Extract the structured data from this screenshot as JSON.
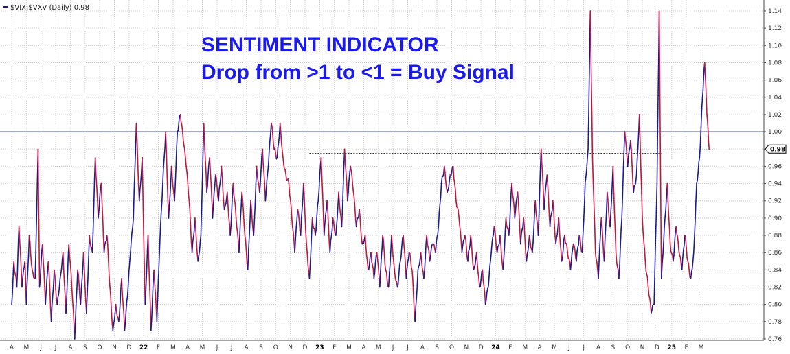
{
  "chart_data": {
    "type": "line",
    "legend": "$VIX:$VXV (Daily) 0.98",
    "annotations": [
      "SENTIMENT INDICATOR",
      "Drop from >1 to <1 = Buy Signal"
    ],
    "last_value": "0.98",
    "ylim": [
      0.76,
      1.15
    ],
    "yticks": [
      "0.76",
      "0.78",
      "0.80",
      "0.82",
      "0.84",
      "0.86",
      "0.88",
      "0.90",
      "0.92",
      "0.94",
      "0.96",
      "0.98",
      "1.00",
      "1.02",
      "1.04",
      "1.06",
      "1.08",
      "1.10",
      "1.12",
      "1.14"
    ],
    "x_months": [
      "A",
      "M",
      "J",
      "J",
      "A",
      "S",
      "O",
      "N",
      "D",
      "22",
      "F",
      "M",
      "A",
      "M",
      "J",
      "J",
      "A",
      "S",
      "O",
      "N",
      "D",
      "23",
      "F",
      "M",
      "A",
      "M",
      "J",
      "J",
      "A",
      "S",
      "O",
      "N",
      "D",
      "24",
      "F",
      "M",
      "A",
      "M",
      "J",
      "J",
      "A",
      "S",
      "O",
      "N",
      "D",
      "25",
      "F",
      "M"
    ],
    "reference_lines": [
      {
        "value": 1.0,
        "style": "solid",
        "color": "#1a237e"
      },
      {
        "value": 0.975,
        "style": "dotted",
        "color": "#1a237e",
        "x_start": 20.3,
        "x_end": 44.3
      }
    ],
    "colors": {
      "line_rising": "#1a1a99",
      "line_falling": "#c8143c",
      "grid": "#d0d0d0"
    },
    "anchors": [
      [
        0,
        0.8
      ],
      [
        0.15,
        0.85
      ],
      [
        0.35,
        0.82
      ],
      [
        0.5,
        0.89
      ],
      [
        0.7,
        0.82
      ],
      [
        0.9,
        0.85
      ],
      [
        1.0,
        0.8
      ],
      [
        1.2,
        0.88
      ],
      [
        1.4,
        0.84
      ],
      [
        1.6,
        0.83
      ],
      [
        1.8,
        0.98
      ],
      [
        1.9,
        0.82
      ],
      [
        2.1,
        0.87
      ],
      [
        2.3,
        0.8
      ],
      [
        2.5,
        0.85
      ],
      [
        2.7,
        0.78
      ],
      [
        2.9,
        0.84
      ],
      [
        3.1,
        0.8
      ],
      [
        3.3,
        0.83
      ],
      [
        3.5,
        0.86
      ],
      [
        3.7,
        0.79
      ],
      [
        3.9,
        0.87
      ],
      [
        4.1,
        0.82
      ],
      [
        4.3,
        0.76
      ],
      [
        4.5,
        0.84
      ],
      [
        4.7,
        0.8
      ],
      [
        4.9,
        0.86
      ],
      [
        5.1,
        0.79
      ],
      [
        5.3,
        0.88
      ],
      [
        5.5,
        0.86
      ],
      [
        5.7,
        0.97
      ],
      [
        5.9,
        0.9
      ],
      [
        6.1,
        0.94
      ],
      [
        6.3,
        0.86
      ],
      [
        6.5,
        0.88
      ],
      [
        6.7,
        0.82
      ],
      [
        6.9,
        0.77
      ],
      [
        7.1,
        0.8
      ],
      [
        7.3,
        0.78
      ],
      [
        7.5,
        0.83
      ],
      [
        7.7,
        0.77
      ],
      [
        7.9,
        0.81
      ],
      [
        8.1,
        0.86
      ],
      [
        8.3,
        0.9
      ],
      [
        8.5,
        1.01
      ],
      [
        8.7,
        0.92
      ],
      [
        8.9,
        0.97
      ],
      [
        9.1,
        0.8
      ],
      [
        9.3,
        0.88
      ],
      [
        9.5,
        0.77
      ],
      [
        9.7,
        0.84
      ],
      [
        9.9,
        0.78
      ],
      [
        10.1,
        0.87
      ],
      [
        10.3,
        0.94
      ],
      [
        10.5,
        1.0
      ],
      [
        10.7,
        0.9
      ],
      [
        10.9,
        0.96
      ],
      [
        11.1,
        0.92
      ],
      [
        11.3,
        1.0
      ],
      [
        11.5,
        1.02
      ],
      [
        11.7,
        0.99
      ],
      [
        11.9,
        0.96
      ],
      [
        12.1,
        0.92
      ],
      [
        12.3,
        0.86
      ],
      [
        12.5,
        0.9
      ],
      [
        12.7,
        0.85
      ],
      [
        12.9,
        0.88
      ],
      [
        13.1,
        1.01
      ],
      [
        13.3,
        0.93
      ],
      [
        13.5,
        0.97
      ],
      [
        13.7,
        0.9
      ],
      [
        13.9,
        0.95
      ],
      [
        14.1,
        0.92
      ],
      [
        14.3,
        0.96
      ],
      [
        14.5,
        0.91
      ],
      [
        14.7,
        0.93
      ],
      [
        14.9,
        0.88
      ],
      [
        15.1,
        0.94
      ],
      [
        15.3,
        0.9
      ],
      [
        15.5,
        0.86
      ],
      [
        15.7,
        0.93
      ],
      [
        15.9,
        0.88
      ],
      [
        16.1,
        0.84
      ],
      [
        16.3,
        0.92
      ],
      [
        16.5,
        0.88
      ],
      [
        16.7,
        0.96
      ],
      [
        16.9,
        0.93
      ],
      [
        17.1,
        0.98
      ],
      [
        17.3,
        0.92
      ],
      [
        17.5,
        0.96
      ],
      [
        17.7,
        1.01
      ],
      [
        17.9,
        0.98
      ],
      [
        18.1,
        0.97
      ],
      [
        18.3,
        1.01
      ],
      [
        18.5,
        0.97
      ],
      [
        18.7,
        0.95
      ],
      [
        18.9,
        0.94
      ],
      [
        19.1,
        0.9
      ],
      [
        19.3,
        0.86
      ],
      [
        19.5,
        0.91
      ],
      [
        19.7,
        0.88
      ],
      [
        19.9,
        0.94
      ],
      [
        20.1,
        0.87
      ],
      [
        20.3,
        0.83
      ],
      [
        20.5,
        0.9
      ],
      [
        20.7,
        0.88
      ],
      [
        20.9,
        0.92
      ],
      [
        21.1,
        0.97
      ],
      [
        21.3,
        0.88
      ],
      [
        21.5,
        0.92
      ],
      [
        21.7,
        0.86
      ],
      [
        21.9,
        0.9
      ],
      [
        22.1,
        0.88
      ],
      [
        22.3,
        0.93
      ],
      [
        22.5,
        0.89
      ],
      [
        22.7,
        0.98
      ],
      [
        22.9,
        0.92
      ],
      [
        23.1,
        0.96
      ],
      [
        23.3,
        0.93
      ],
      [
        23.5,
        0.89
      ],
      [
        23.7,
        0.91
      ],
      [
        23.9,
        0.87
      ],
      [
        24.1,
        0.88
      ],
      [
        24.3,
        0.84
      ],
      [
        24.5,
        0.86
      ],
      [
        24.7,
        0.83
      ],
      [
        24.9,
        0.86
      ],
      [
        25.1,
        0.82
      ],
      [
        25.3,
        0.88
      ],
      [
        25.5,
        0.84
      ],
      [
        25.7,
        0.82
      ],
      [
        25.9,
        0.88
      ],
      [
        26.1,
        0.84
      ],
      [
        26.3,
        0.82
      ],
      [
        26.5,
        0.85
      ],
      [
        26.7,
        0.88
      ],
      [
        26.9,
        0.83
      ],
      [
        27.1,
        0.86
      ],
      [
        27.3,
        0.84
      ],
      [
        27.5,
        0.78
      ],
      [
        27.7,
        0.84
      ],
      [
        27.9,
        0.86
      ],
      [
        28.1,
        0.83
      ],
      [
        28.3,
        0.88
      ],
      [
        28.5,
        0.85
      ],
      [
        28.7,
        0.87
      ],
      [
        28.9,
        0.86
      ],
      [
        29.1,
        0.89
      ],
      [
        29.3,
        0.94
      ],
      [
        29.5,
        0.96
      ],
      [
        29.7,
        0.93
      ],
      [
        29.9,
        0.95
      ],
      [
        30.1,
        0.96
      ],
      [
        30.3,
        0.92
      ],
      [
        30.5,
        0.9
      ],
      [
        30.7,
        0.86
      ],
      [
        30.9,
        0.88
      ],
      [
        31.1,
        0.85
      ],
      [
        31.3,
        0.88
      ],
      [
        31.5,
        0.84
      ],
      [
        31.7,
        0.86
      ],
      [
        31.9,
        0.82
      ],
      [
        32.1,
        0.84
      ],
      [
        32.3,
        0.8
      ],
      [
        32.5,
        0.82
      ],
      [
        32.7,
        0.86
      ],
      [
        32.9,
        0.89
      ],
      [
        33.1,
        0.86
      ],
      [
        33.3,
        0.88
      ],
      [
        33.5,
        0.84
      ],
      [
        33.7,
        0.9
      ],
      [
        33.9,
        0.88
      ],
      [
        34.1,
        0.94
      ],
      [
        34.3,
        0.9
      ],
      [
        34.5,
        0.93
      ],
      [
        34.7,
        0.87
      ],
      [
        34.9,
        0.9
      ],
      [
        35.1,
        0.85
      ],
      [
        35.3,
        0.88
      ],
      [
        35.5,
        0.86
      ],
      [
        35.7,
        0.92
      ],
      [
        35.9,
        0.88
      ],
      [
        36.1,
        0.98
      ],
      [
        36.3,
        0.91
      ],
      [
        36.5,
        0.95
      ],
      [
        36.7,
        0.89
      ],
      [
        36.9,
        0.92
      ],
      [
        37.1,
        0.87
      ],
      [
        37.3,
        0.9
      ],
      [
        37.5,
        0.85
      ],
      [
        37.7,
        0.88
      ],
      [
        37.9,
        0.86
      ],
      [
        38.1,
        0.84
      ],
      [
        38.3,
        0.87
      ],
      [
        38.5,
        0.85
      ],
      [
        38.7,
        0.88
      ],
      [
        38.9,
        0.86
      ],
      [
        39.1,
        0.94
      ],
      [
        39.3,
        0.98
      ],
      [
        39.45,
        1.14
      ],
      [
        39.6,
        0.97
      ],
      [
        39.8,
        0.86
      ],
      [
        40.0,
        0.83
      ],
      [
        40.2,
        0.9
      ],
      [
        40.4,
        0.85
      ],
      [
        40.6,
        0.93
      ],
      [
        40.8,
        0.89
      ],
      [
        41.0,
        0.96
      ],
      [
        41.2,
        0.86
      ],
      [
        41.4,
        0.83
      ],
      [
        41.6,
        0.9
      ],
      [
        41.8,
        1.0
      ],
      [
        42.0,
        0.96
      ],
      [
        42.2,
        0.99
      ],
      [
        42.4,
        0.93
      ],
      [
        42.6,
        0.95
      ],
      [
        42.8,
        1.02
      ],
      [
        43.0,
        0.9
      ],
      [
        43.2,
        0.85
      ],
      [
        43.4,
        0.82
      ],
      [
        43.6,
        0.79
      ],
      [
        43.8,
        0.8
      ],
      [
        44.0,
        0.94
      ],
      [
        44.15,
        1.14
      ],
      [
        44.3,
        0.83
      ],
      [
        44.5,
        0.89
      ],
      [
        44.7,
        0.94
      ],
      [
        44.9,
        0.87
      ],
      [
        45.1,
        0.85
      ],
      [
        45.3,
        0.89
      ],
      [
        45.5,
        0.86
      ],
      [
        45.7,
        0.84
      ],
      [
        45.9,
        0.88
      ],
      [
        46.1,
        0.85
      ],
      [
        46.3,
        0.83
      ],
      [
        46.5,
        0.86
      ],
      [
        46.7,
        0.94
      ],
      [
        46.9,
        0.97
      ],
      [
        47.1,
        1.04
      ],
      [
        47.25,
        1.08
      ],
      [
        47.4,
        1.02
      ],
      [
        47.55,
        0.98
      ]
    ]
  }
}
